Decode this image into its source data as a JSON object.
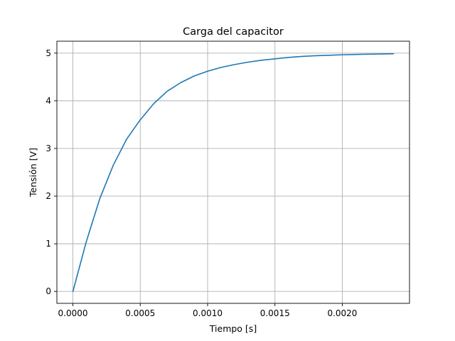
{
  "chart_data": {
    "type": "line",
    "title": "Carga del capacitor",
    "xlabel": "Tiempo [s]",
    "ylabel": "Tensión [V]",
    "xlim": [
      -0.000119,
      0.002499
    ],
    "ylim": [
      -0.25,
      5.25
    ],
    "xticks": [
      0,
      0.0005,
      0.001,
      0.0015,
      0.002
    ],
    "xtick_labels": [
      "0.0000",
      "0.0005",
      "0.0010",
      "0.0015",
      "0.0020"
    ],
    "yticks": [
      0,
      1,
      2,
      3,
      4,
      5
    ],
    "ytick_labels": [
      "0",
      "1",
      "2",
      "3",
      "4",
      "5"
    ],
    "grid": true,
    "legend": "none",
    "series": [
      {
        "color": "#1f77b4",
        "x": [
          0,
          0.0001,
          0.0002,
          0.0003,
          0.0004,
          0.0005,
          0.0006,
          0.0007,
          0.0008,
          0.0009,
          0.001,
          0.0011,
          0.0012,
          0.0013,
          0.0014,
          0.0015,
          0.0016,
          0.0017,
          0.0018,
          0.0019,
          0.002,
          0.0021,
          0.0022,
          0.0023,
          0.00238
        ],
        "y": [
          0,
          1.05,
          1.95,
          2.65,
          3.2,
          3.6,
          3.94,
          4.2,
          4.38,
          4.52,
          4.62,
          4.7,
          4.76,
          4.81,
          4.85,
          4.88,
          4.91,
          4.93,
          4.945,
          4.955,
          4.965,
          4.972,
          4.978,
          4.983,
          4.986
        ]
      }
    ]
  }
}
